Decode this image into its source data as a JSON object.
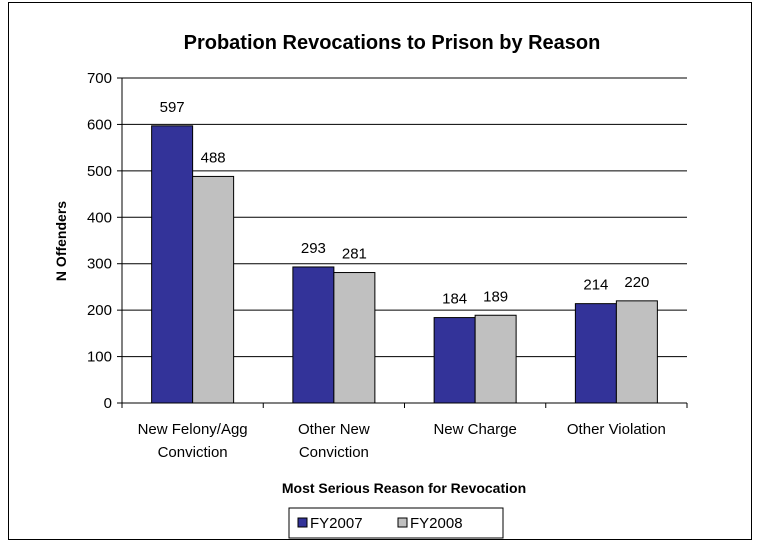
{
  "chart_data": {
    "type": "bar",
    "title": "Probation Revocations to Prison by Reason",
    "xlabel": "Most Serious Reason for Revocation",
    "ylabel": "N Offenders",
    "ylim": [
      0,
      700
    ],
    "yticks": [
      "0",
      "100",
      "200",
      "300",
      "400",
      "500",
      "600",
      "700"
    ],
    "categories": [
      [
        "New Felony/Agg",
        "Conviction"
      ],
      [
        "Other New",
        "Conviction"
      ],
      [
        "New Charge"
      ],
      [
        "Other Violation"
      ]
    ],
    "series": [
      {
        "name": "FY2007",
        "values": [
          597,
          293,
          184,
          214
        ],
        "color": "#333399"
      },
      {
        "name": "FY2008",
        "values": [
          488,
          281,
          189,
          220
        ],
        "color": "#C0C0C0"
      }
    ],
    "grid": true,
    "legend_position": "bottom"
  }
}
